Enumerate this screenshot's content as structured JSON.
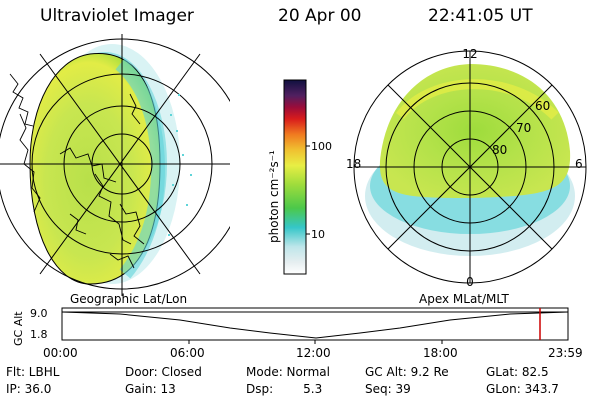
{
  "header": {
    "title": "Ultraviolet Imager",
    "date": "20 Apr 00",
    "time": "22:41:05 UT"
  },
  "colorbar": {
    "label": "photon cm⁻²s⁻¹",
    "ticks": [
      "100",
      "10"
    ]
  },
  "polar": {
    "mlt_labels": {
      "top": "12",
      "left": "18",
      "right": "6",
      "bottom": "0"
    },
    "lat_labels": [
      "60",
      "70",
      "80"
    ]
  },
  "timeline": {
    "left_caption": "Geographic Lat/Lon",
    "right_caption": "Apex MLat/MLT",
    "axis_label": "GC Alt",
    "y_ticks": [
      "9.0",
      "1.8"
    ],
    "x_ticks": [
      "00:00",
      "06:00",
      "12:00",
      "18:00",
      "23:59"
    ],
    "marker_color": "#cc0000"
  },
  "info": {
    "flt": "Flt: LBHL",
    "ip": "IP: 36.0",
    "door": "Door: Closed",
    "gain": "Gain: 13",
    "mode": "Mode: Normal",
    "dsp_label": "Dsp:",
    "dsp_value": "5.3",
    "gcalt": "GC Alt: 9.2 Re",
    "seq": "Seq: 39",
    "glat": "GLat: 82.5",
    "glon": "GLon: 343.7"
  },
  "palette": {
    "aurora_green": "#c8e650",
    "aurora_yellow": "#e8ee44",
    "aurora_lime": "#9edc3c",
    "aurora_cyan": "#5fd4d8"
  }
}
